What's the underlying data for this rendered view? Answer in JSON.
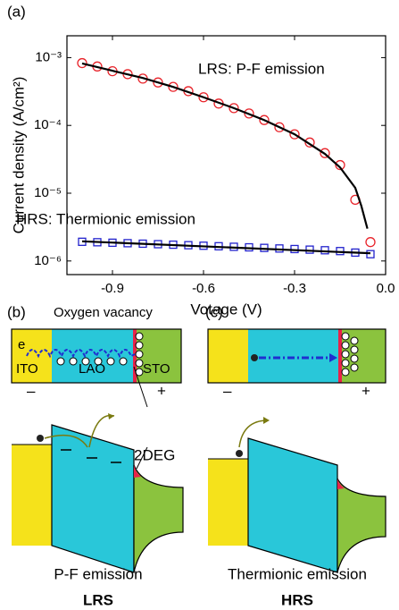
{
  "chart_data": {
    "type": "scatter",
    "panel_label": "(a)",
    "xlabel": "Votage (V)",
    "ylabel": "Current density (A/cm²)",
    "xlim": [
      -1.05,
      0
    ],
    "xticks": [
      -0.9,
      -0.6,
      -0.3,
      {
        "value": 0,
        "label": "0.0"
      }
    ],
    "ylim": [
      6.3e-07,
      0.0021
    ],
    "ylog": true,
    "yticks": [
      {
        "value": 1e-06,
        "label": "10⁻⁶"
      },
      {
        "value": 1e-05,
        "label": "10⁻⁵"
      },
      {
        "value": 0.0001,
        "label": "10⁻⁴"
      },
      {
        "value": 0.001,
        "label": "10⁻³"
      }
    ],
    "series": [
      {
        "name": "LRS: P-F emission",
        "color": "#e8242b",
        "marker": "circle",
        "x": [
          -1.0,
          -0.95,
          -0.9,
          -0.85,
          -0.8,
          -0.75,
          -0.7,
          -0.65,
          -0.6,
          -0.55,
          -0.5,
          -0.45,
          -0.4,
          -0.35,
          -0.3,
          -0.25,
          -0.2,
          -0.15,
          -0.1,
          -0.05
        ],
        "values": [
          0.00083,
          0.00074,
          0.00063,
          0.00057,
          0.00049,
          0.00043,
          0.00037,
          0.00032,
          0.00026,
          0.00021,
          0.00018,
          0.00015,
          0.00012,
          9.4e-05,
          7.4e-05,
          5.6e-05,
          3.9e-05,
          2.6e-05,
          8e-06,
          1.9e-06
        ]
      },
      {
        "color": "#000000",
        "marker": "line",
        "x": [
          -1.0,
          -0.9,
          -0.8,
          -0.7,
          -0.6,
          -0.5,
          -0.4,
          -0.3,
          -0.2,
          -0.15,
          -0.1,
          -0.08,
          -0.06
        ],
        "values": [
          0.00082,
          0.00064,
          0.0005,
          0.00037,
          0.00026,
          0.00018,
          0.00012,
          7.4e-05,
          3.8e-05,
          2.4e-05,
          1.2e-05,
          6.5e-06,
          3e-06
        ]
      },
      {
        "name": "HRS: Thermionic emission",
        "color": "#2222cc",
        "marker": "square",
        "x": [
          -1.0,
          -0.95,
          -0.9,
          -0.85,
          -0.8,
          -0.75,
          -0.7,
          -0.65,
          -0.6,
          -0.55,
          -0.5,
          -0.45,
          -0.4,
          -0.35,
          -0.3,
          -0.25,
          -0.2,
          -0.15,
          -0.1,
          -0.05
        ],
        "values": [
          1.92e-06,
          1.89e-06,
          1.86e-06,
          1.83e-06,
          1.8e-06,
          1.77e-06,
          1.74e-06,
          1.71e-06,
          1.68e-06,
          1.65e-06,
          1.62e-06,
          1.59e-06,
          1.56e-06,
          1.53e-06,
          1.5e-06,
          1.47e-06,
          1.44e-06,
          1.4e-06,
          1.33e-06,
          1.26e-06
        ]
      },
      {
        "color": "#000000",
        "marker": "line",
        "x": [
          -1.0,
          -0.05
        ],
        "values": [
          1.95e-06,
          1.3e-06
        ]
      }
    ]
  },
  "panels": {
    "b": {
      "label": "(b)",
      "vacancy": "Oxygen vacancy",
      "electron": "e",
      "ito": "ITO",
      "lao": "LAO",
      "sto": "STO",
      "minus": "–",
      "plus": "+",
      "deg": "2DEG",
      "mechanism": "P-F emission",
      "state": "LRS"
    },
    "c": {
      "label": "(c)",
      "minus": "–",
      "plus": "+",
      "mechanism": "Thermionic emission",
      "state": "HRS"
    }
  }
}
